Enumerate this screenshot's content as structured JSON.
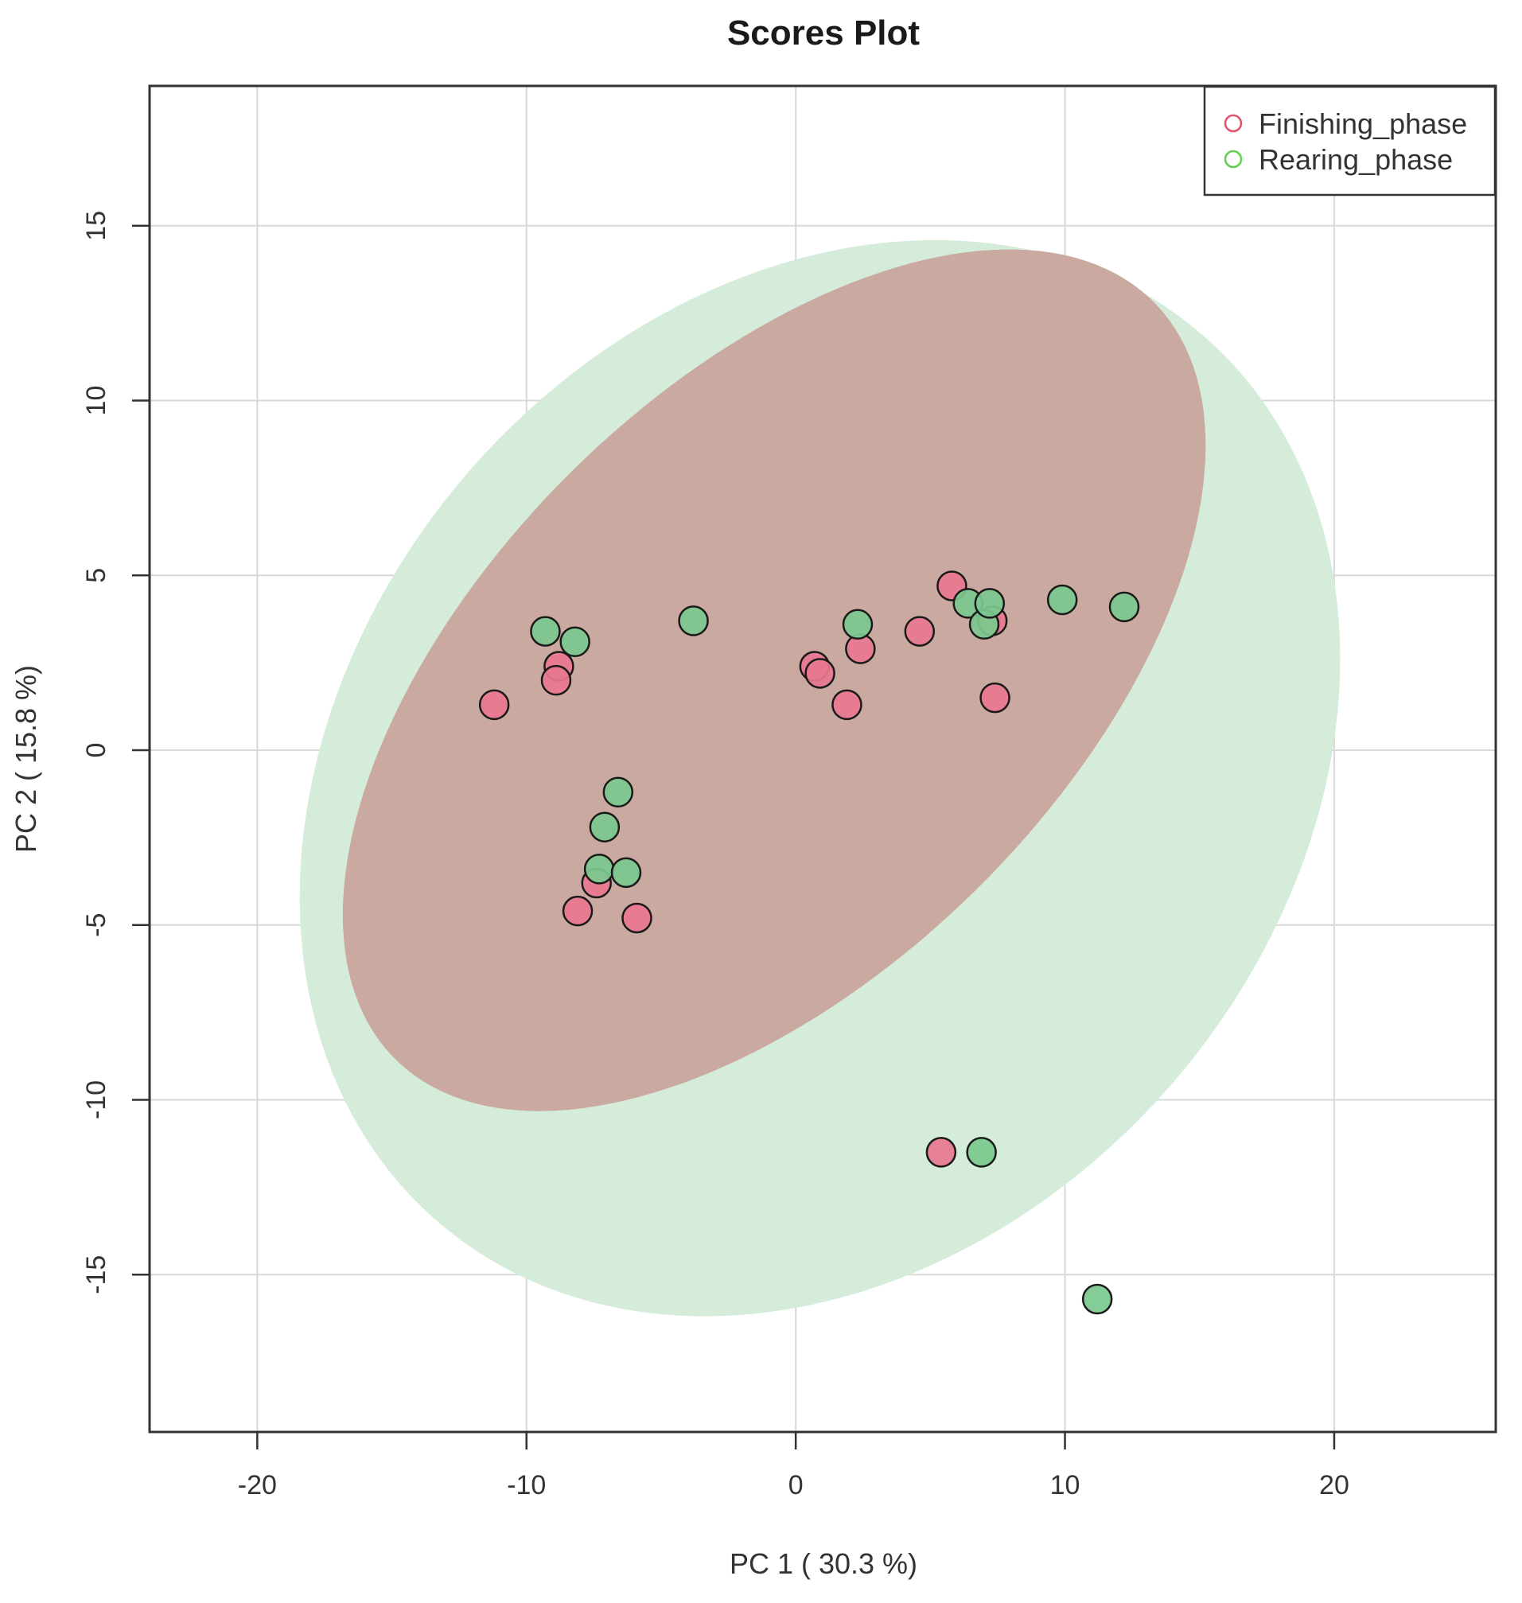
{
  "chart_data": {
    "type": "scatter",
    "title": "Scores Plot",
    "xlabel": "PC 1 ( 30.3 %)",
    "ylabel": "PC 2 ( 15.8 %)",
    "xlim": [
      -24,
      26
    ],
    "ylim": [
      -19.5,
      19
    ],
    "xticks": [
      -20,
      -10,
      0,
      10,
      20
    ],
    "xtick_labels": [
      "-20",
      "-10",
      "0",
      "10",
      "20"
    ],
    "yticks": [
      -15,
      -10,
      -5,
      0,
      5,
      10,
      15
    ],
    "ytick_labels": [
      "-15",
      "-10",
      "-5",
      "0",
      "5",
      "10",
      "15"
    ],
    "grid": true,
    "legend_position": "top-right",
    "series": [
      {
        "name": "Finishing_phase",
        "color": "#e8778f",
        "legend_color": "#df536b",
        "ellipse_color": "#c9a9a0",
        "points": [
          [
            -11.2,
            1.3
          ],
          [
            -8.8,
            2.4
          ],
          [
            -8.9,
            2.0
          ],
          [
            -7.4,
            -3.8
          ],
          [
            -8.1,
            -4.6
          ],
          [
            -5.9,
            -4.8
          ],
          [
            0.7,
            2.4
          ],
          [
            0.9,
            2.2
          ],
          [
            1.9,
            1.3
          ],
          [
            2.4,
            2.9
          ],
          [
            4.6,
            3.4
          ],
          [
            5.8,
            4.7
          ],
          [
            7.3,
            3.7
          ],
          [
            7.4,
            1.5
          ],
          [
            5.4,
            -11.5
          ]
        ],
        "ellipse": {
          "center": [
            -0.8,
            2.0
          ],
          "semi_major": 18.0,
          "semi_minor": 9.2,
          "angle_deg": 32
        }
      },
      {
        "name": "Rearing_phase",
        "color": "#7bc98e",
        "legend_color": "#61d04f",
        "ellipse_color": "#d4ecd9",
        "points": [
          [
            -9.3,
            3.4
          ],
          [
            -8.2,
            3.1
          ],
          [
            -3.8,
            3.7
          ],
          [
            2.3,
            3.6
          ],
          [
            6.4,
            4.2
          ],
          [
            7.0,
            3.6
          ],
          [
            7.2,
            4.2
          ],
          [
            9.9,
            4.3
          ],
          [
            12.2,
            4.1
          ],
          [
            -6.6,
            -1.2
          ],
          [
            -7.1,
            -2.2
          ],
          [
            -7.3,
            -3.4
          ],
          [
            -6.3,
            -3.5
          ],
          [
            6.9,
            -11.5
          ],
          [
            11.2,
            -15.7
          ]
        ],
        "ellipse": {
          "center": [
            0.9,
            -0.8
          ],
          "semi_major": 20.0,
          "semi_minor": 14.5,
          "angle_deg": 22
        }
      }
    ]
  }
}
